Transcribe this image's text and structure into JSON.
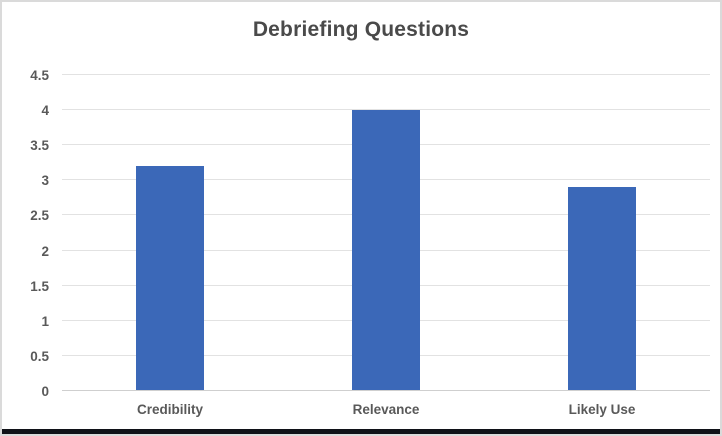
{
  "chart_data": {
    "type": "bar",
    "title": "Debriefing Questions",
    "categories": [
      "Credibility",
      "Relevance",
      "Likely Use"
    ],
    "values": [
      3.2,
      4,
      2.9
    ],
    "series_color": "#3b68b8",
    "xlabel": "",
    "ylabel": "",
    "ylim": [
      0,
      4.5
    ],
    "ytick_step": 0.5,
    "ytick_labels": [
      "0",
      "0.5",
      "1",
      "1.5",
      "2",
      "2.5",
      "3",
      "3.5",
      "4",
      "4.5"
    ],
    "grid": true,
    "legend_position": "none"
  },
  "colors": {
    "bar": "#3b68b8",
    "gridline": "#e2e2e2",
    "axis_line": "#cfcfcf",
    "tick_text": "#595959",
    "title_text": "#4a4a4a",
    "chart_border": "#dadada",
    "bottom_strip": "#101218"
  }
}
